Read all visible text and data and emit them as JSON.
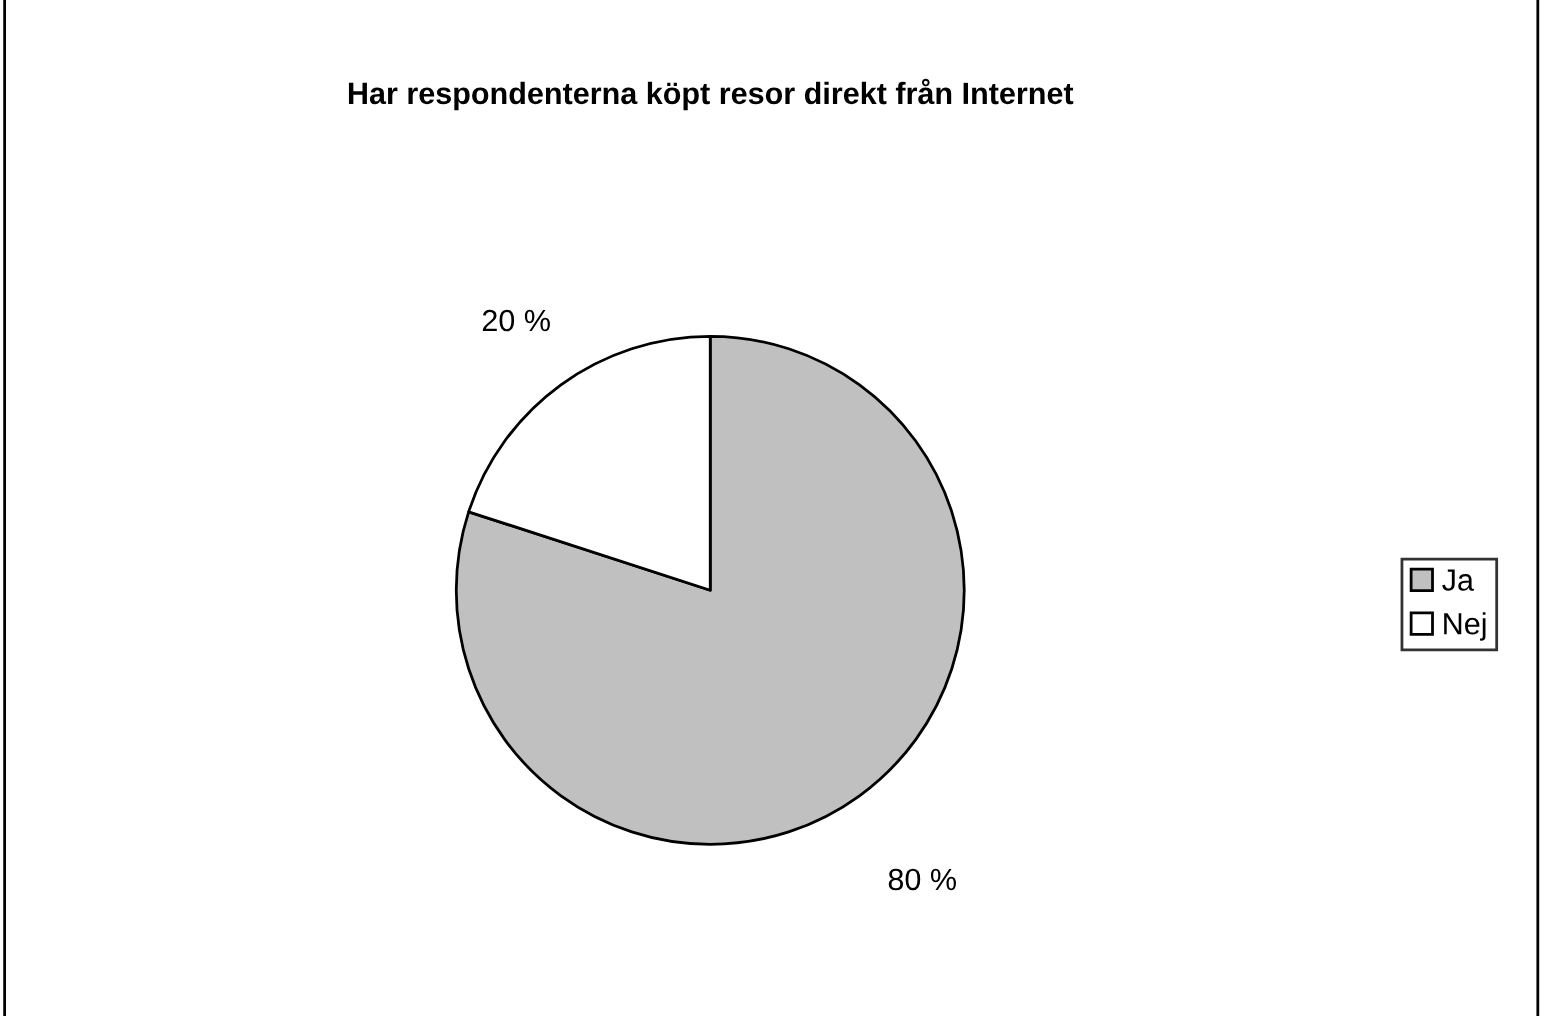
{
  "chart_data": {
    "type": "pie",
    "title": "Har respondenterna köpt resor direkt från Internet",
    "categories": [
      "Ja",
      "Nej"
    ],
    "values": [
      80,
      20
    ],
    "colors": [
      "#c0c0c0",
      "#ffffff"
    ],
    "value_labels": [
      "80 %",
      "20 %"
    ],
    "legend": "right"
  }
}
